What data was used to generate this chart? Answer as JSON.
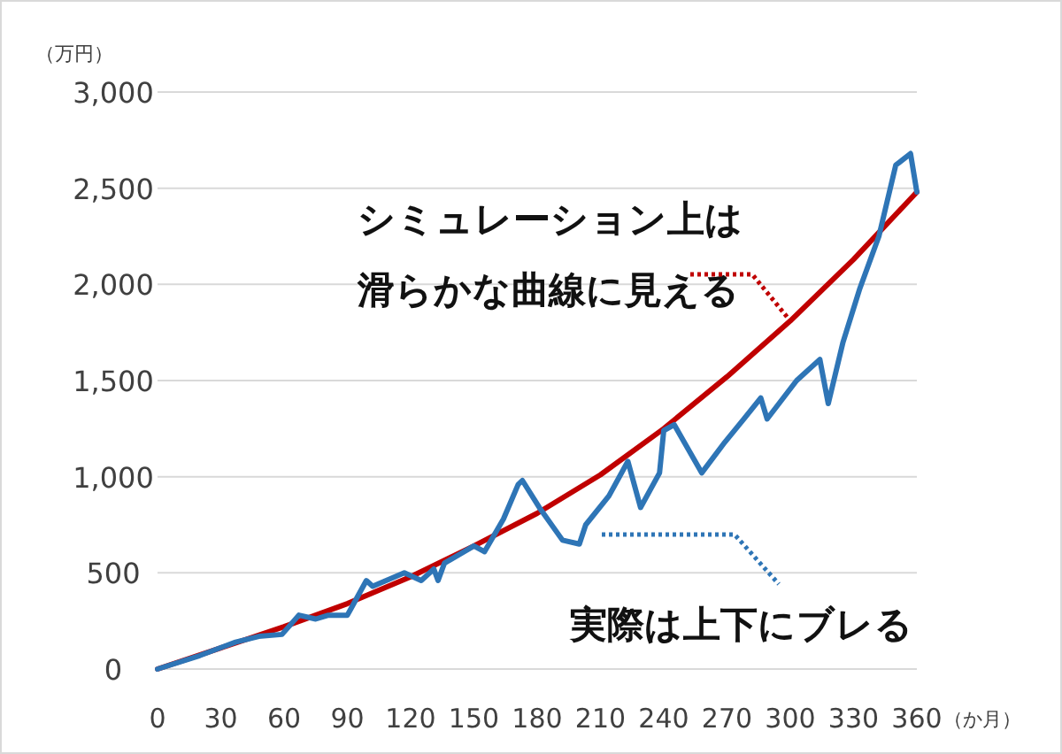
{
  "chart_data": {
    "type": "line",
    "ylabel": "（万円）",
    "xlabel": "（か月）",
    "xlim": [
      0,
      360
    ],
    "xticks": [
      0,
      30,
      60,
      90,
      120,
      150,
      180,
      210,
      240,
      270,
      300,
      330,
      360
    ],
    "ylim": [
      0,
      3000
    ],
    "yticks": [
      0,
      500,
      {
        "value": 1000,
        "label": "1,000"
      },
      {
        "value": 1500,
        "label": "1,500"
      },
      {
        "value": 2000,
        "label": "2,000"
      },
      {
        "value": 2500,
        "label": "2,500"
      },
      {
        "value": 3000,
        "label": "3,000"
      }
    ],
    "grid": "y",
    "marker": "none",
    "line_style": "solid",
    "series": [
      {
        "color": "#c00000",
        "x": [
          0,
          30,
          60,
          90,
          120,
          150,
          180,
          210,
          240,
          270,
          300,
          330,
          360
        ],
        "values": [
          0,
          110,
          220,
          340,
          480,
          640,
          810,
          1010,
          1250,
          1520,
          1810,
          2130,
          2480
        ]
      },
      {
        "color": "#2e75b6",
        "x": [
          0,
          20,
          37,
          48,
          59,
          67,
          75,
          81,
          90,
          92,
          99,
          102,
          117,
          125,
          131,
          133,
          136,
          150,
          155,
          164,
          171,
          173,
          181,
          192,
          200,
          203,
          214,
          223,
          229,
          238,
          240,
          245,
          258,
          269,
          278,
          286,
          289,
          303,
          314,
          318,
          325,
          333,
          342,
          350,
          357,
          360
        ],
        "values": [
          0,
          70,
          140,
          170,
          180,
          280,
          260,
          280,
          280,
          320,
          460,
          430,
          500,
          460,
          520,
          460,
          550,
          640,
          610,
          780,
          960,
          980,
          840,
          670,
          650,
          750,
          900,
          1080,
          840,
          1020,
          1240,
          1270,
          1020,
          1180,
          1300,
          1410,
          1300,
          1500,
          1610,
          1380,
          1700,
          1980,
          2250,
          2620,
          2680,
          2480
        ]
      }
    ],
    "annotations": [
      {
        "text": "シミュレーション上は",
        "x": 300,
        "y": 1810
      },
      "滑らかな曲線に見える",
      "実際は上下にブレる"
    ]
  }
}
